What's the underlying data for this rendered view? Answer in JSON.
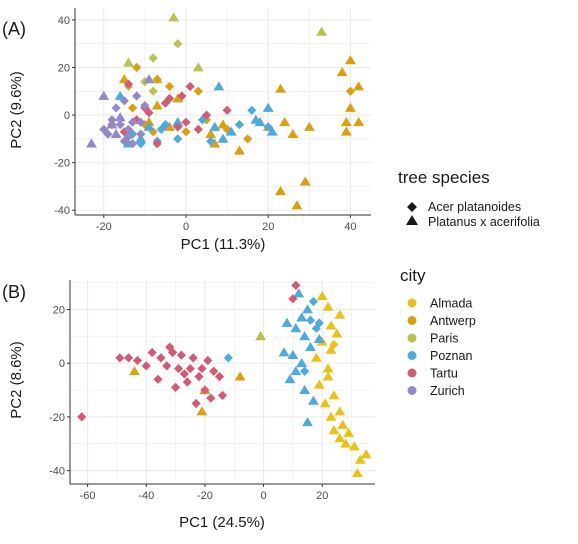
{
  "colors": {
    "Almada": "#e8c21a",
    "Antwerp": "#d9a012",
    "Paris": "#b9c24f",
    "Poznan": "#4ea9dd",
    "Tartu": "#d25a74",
    "Zurich": "#9488c8",
    "panel_bg": "#ffffff",
    "grid": "#ebebeb",
    "marker_key": "#1a1a1a"
  },
  "chart_data": [
    {
      "type": "scatter",
      "panel_label": "(A)",
      "xlabel": "PC1 (11.3%)",
      "ylabel": "PC2 (9.6%)",
      "xlim": [
        -27,
        45
      ],
      "ylim": [
        -42,
        45
      ],
      "xticks": [
        -20,
        0,
        20,
        40
      ],
      "yticks": [
        -40,
        -20,
        0,
        20,
        40
      ],
      "grid": true,
      "legend_position": "right",
      "legend": {
        "title": "tree  species",
        "entries": [
          {
            "label": "Acer platanoides",
            "shape": "diamond"
          },
          {
            "label": "Platanus x acerifolia",
            "shape": "triangle"
          }
        ]
      },
      "series": [
        {
          "city": "Paris",
          "shape": "triangle",
          "points": [
            [
              -3,
              41
            ],
            [
              33,
              35
            ],
            [
              -14,
              22
            ],
            [
              3,
              20
            ],
            [
              -7,
              15
            ]
          ]
        },
        {
          "city": "Paris",
          "shape": "diamond",
          "points": [
            [
              -2,
              30
            ],
            [
              -8,
              24
            ],
            [
              -10,
              14
            ],
            [
              -14,
              12
            ],
            [
              -8,
              10
            ]
          ]
        },
        {
          "city": "Antwerp",
          "shape": "triangle",
          "points": [
            [
              40,
              23
            ],
            [
              38,
              18
            ],
            [
              42,
              12
            ],
            [
              23,
              11
            ],
            [
              40,
              3
            ],
            [
              42,
              -3
            ],
            [
              39,
              -3
            ],
            [
              39,
              -7
            ],
            [
              30,
              -5
            ],
            [
              24,
              -3
            ],
            [
              26,
              -8
            ],
            [
              20,
              -5
            ],
            [
              13,
              -15
            ],
            [
              23,
              -32
            ],
            [
              29,
              -28
            ],
            [
              27,
              -38
            ],
            [
              -15,
              15
            ],
            [
              -7,
              4
            ],
            [
              -9,
              -3
            ],
            [
              -4,
              -5
            ],
            [
              9,
              -4
            ],
            [
              6,
              -8
            ],
            [
              7,
              -12
            ],
            [
              -2,
              7
            ]
          ]
        },
        {
          "city": "Antwerp",
          "shape": "diamond",
          "points": [
            [
              40,
              10
            ],
            [
              -12,
              20
            ],
            [
              -7,
              15
            ],
            [
              3,
              10
            ],
            [
              -4,
              12
            ],
            [
              -13,
              3
            ],
            [
              -10,
              -4
            ],
            [
              -8,
              -7
            ],
            [
              0,
              -7
            ],
            [
              10,
              -6
            ],
            [
              15,
              -10
            ],
            [
              5,
              -2
            ]
          ]
        },
        {
          "city": "Poznan",
          "shape": "triangle",
          "points": [
            [
              8,
              12
            ],
            [
              -16,
              8
            ],
            [
              20,
              3
            ],
            [
              18,
              -3
            ],
            [
              21,
              -7
            ],
            [
              -2,
              -3
            ],
            [
              7,
              -5
            ],
            [
              11,
              -7
            ],
            [
              -14,
              -12
            ],
            [
              -11,
              -10
            ],
            [
              -9,
              -5
            ],
            [
              9,
              -10
            ],
            [
              17,
              -2
            ]
          ]
        },
        {
          "city": "Poznan",
          "shape": "diamond",
          "points": [
            [
              16,
              2
            ],
            [
              13,
              -4
            ],
            [
              4,
              -2
            ],
            [
              -6,
              -6
            ],
            [
              -11,
              -12
            ],
            [
              -2,
              -10
            ],
            [
              6,
              -11
            ],
            [
              -5,
              -4
            ],
            [
              -13,
              -8
            ],
            [
              20,
              -5
            ],
            [
              -7,
              -11
            ]
          ]
        },
        {
          "city": "Tartu",
          "shape": "diamond",
          "points": [
            [
              -14,
              13
            ],
            [
              -4,
              7
            ],
            [
              -1,
              8
            ],
            [
              1,
              12
            ],
            [
              -5,
              5
            ],
            [
              -10,
              3
            ],
            [
              -12,
              -2
            ],
            [
              -15,
              -7
            ],
            [
              -18,
              -4
            ],
            [
              -2,
              -5
            ],
            [
              3,
              -6
            ],
            [
              5,
              0
            ],
            [
              10,
              2
            ],
            [
              -7,
              -12
            ],
            [
              0,
              -3
            ],
            [
              -9,
              1
            ]
          ]
        },
        {
          "city": "Zurich",
          "shape": "triangle",
          "points": [
            [
              -9,
              15
            ],
            [
              -20,
              8
            ],
            [
              -17,
              -8
            ],
            [
              -23,
              -12
            ],
            [
              -18,
              -4
            ],
            [
              -16,
              -1
            ]
          ]
        },
        {
          "city": "Zurich",
          "shape": "diamond",
          "points": [
            [
              -17,
              3
            ],
            [
              -16,
              -4
            ],
            [
              -19,
              -8
            ],
            [
              -14,
              -6
            ],
            [
              -14,
              -9
            ],
            [
              -11,
              -8
            ],
            [
              -18,
              -2
            ],
            [
              -15,
              6
            ],
            [
              -12,
              8
            ],
            [
              -11,
              -3
            ],
            [
              -10,
              4
            ],
            [
              -13,
              -12
            ],
            [
              -13,
              -3
            ],
            [
              -20,
              -6
            ],
            [
              -15,
              -11
            ]
          ]
        }
      ]
    },
    {
      "type": "scatter",
      "panel_label": "(B)",
      "xlabel": "PC1 (24.5%)",
      "ylabel": "PC2 (8.6%)",
      "xlim": [
        -66,
        38
      ],
      "ylim": [
        -45,
        31
      ],
      "xticks": [
        -60,
        -40,
        -20,
        0,
        20
      ],
      "yticks": [
        -40,
        -20,
        0,
        20
      ],
      "grid": true,
      "legend_position": "right",
      "legend": {
        "title": "city",
        "entries": [
          "Almada",
          "Antwerp",
          "Paris",
          "Poznan",
          "Tartu",
          "Zurich"
        ]
      },
      "series": [
        {
          "city": "Almada",
          "shape": "triangle",
          "points": [
            [
              20,
              25
            ],
            [
              22,
              21
            ],
            [
              26,
              18
            ],
            [
              23,
              14
            ],
            [
              25,
              11
            ],
            [
              20,
              8
            ],
            [
              23,
              5
            ],
            [
              18,
              2
            ],
            [
              22,
              -2
            ],
            [
              19,
              -8
            ],
            [
              24,
              -12
            ],
            [
              21,
              -15
            ],
            [
              26,
              -18
            ],
            [
              23,
              -20
            ],
            [
              27,
              -23
            ],
            [
              24,
              -25
            ],
            [
              29,
              -26
            ],
            [
              26,
              -28
            ],
            [
              31,
              -31
            ],
            [
              33,
              -36
            ],
            [
              35,
              -34
            ],
            [
              32,
              -41
            ],
            [
              28,
              -30
            ],
            [
              22,
              -5
            ]
          ]
        },
        {
          "city": "Almada",
          "shape": "diamond",
          "points": [
            [
              24,
              7
            ]
          ]
        },
        {
          "city": "Antwerp",
          "shape": "triangle",
          "points": [
            [
              -44,
              -3
            ],
            [
              -20,
              -10
            ],
            [
              -8,
              -5
            ],
            [
              -21,
              -18
            ]
          ]
        },
        {
          "city": "Paris",
          "shape": "triangle",
          "points": [
            [
              -1,
              10
            ]
          ]
        },
        {
          "city": "Poznan",
          "shape": "triangle",
          "points": [
            [
              12,
              26
            ],
            [
              15,
              20
            ],
            [
              13,
              17
            ],
            [
              8,
              15
            ],
            [
              11,
              13
            ],
            [
              14,
              10
            ],
            [
              16,
              6
            ],
            [
              10,
              3
            ],
            [
              13,
              0
            ],
            [
              11,
              -3
            ],
            [
              9,
              -6
            ],
            [
              14,
              -10
            ],
            [
              17,
              -14
            ],
            [
              15,
              -22
            ],
            [
              7,
              4
            ],
            [
              19,
              9
            ]
          ]
        },
        {
          "city": "Poznan",
          "shape": "diamond",
          "points": [
            [
              17,
              23
            ],
            [
              19,
              15
            ],
            [
              18,
              13
            ],
            [
              16,
              16
            ],
            [
              14,
              -3
            ],
            [
              -12,
              2
            ]
          ]
        },
        {
          "city": "Tartu",
          "shape": "diamond",
          "points": [
            [
              -62,
              -20
            ],
            [
              -49,
              2
            ],
            [
              -46,
              2
            ],
            [
              -43,
              1
            ],
            [
              -40,
              -1
            ],
            [
              -38,
              4
            ],
            [
              -35,
              2
            ],
            [
              -33,
              -1
            ],
            [
              -31,
              4
            ],
            [
              -29,
              -2
            ],
            [
              -27,
              -4
            ],
            [
              -25,
              -2
            ],
            [
              -24,
              2
            ],
            [
              -22,
              -5
            ],
            [
              -20,
              -10
            ],
            [
              -18,
              -13
            ],
            [
              -30,
              -9
            ],
            [
              -36,
              -6
            ],
            [
              -28,
              3
            ],
            [
              -26,
              -7
            ],
            [
              -21,
              -2
            ],
            [
              -17,
              -3
            ],
            [
              -15,
              -5
            ],
            [
              -14,
              -12
            ],
            [
              11,
              29
            ],
            [
              10,
              24
            ],
            [
              -23,
              -15
            ],
            [
              -32,
              6
            ],
            [
              -19,
              1
            ]
          ]
        }
      ]
    }
  ]
}
